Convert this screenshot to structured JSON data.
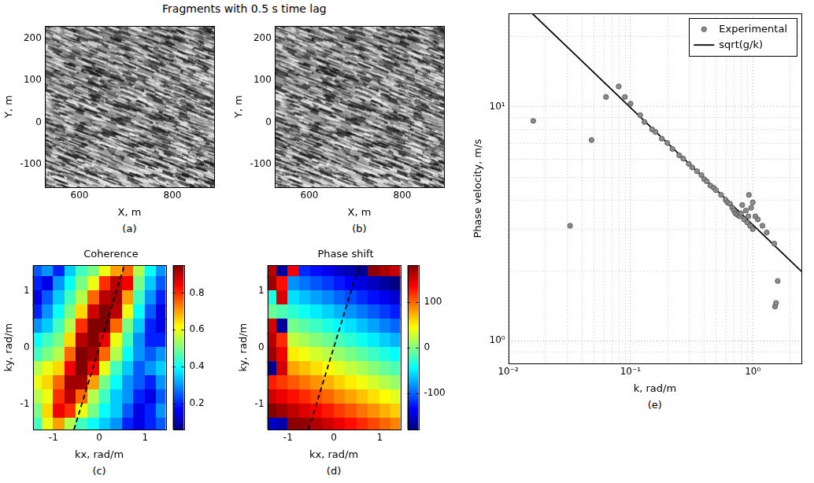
{
  "title": "Fragments with 0.5 s time lag",
  "chart_data": [
    {
      "type": "image",
      "caption": "(a)",
      "x_label": "X, m",
      "y_label": "Y, m",
      "xlim": [
        525,
        890
      ],
      "xticks": [
        600,
        800
      ],
      "ylim": [
        -155,
        230
      ],
      "yticks": [
        -100,
        0,
        100,
        200
      ],
      "grid": false
    },
    {
      "type": "image",
      "caption": "(b)",
      "x_label": "X, m",
      "y_label": "Y, m",
      "xlim": [
        525,
        890
      ],
      "xticks": [
        600,
        800
      ],
      "ylim": [
        -155,
        230
      ],
      "yticks": [
        -100,
        0,
        100,
        200
      ],
      "grid": false
    },
    {
      "type": "heatmap",
      "title": "Coherence",
      "caption": "(c)",
      "x_label": "kx, rad/m",
      "y_label": "ky, rad/m",
      "xlim": [
        -1.45,
        1.45
      ],
      "xticks": [
        -1,
        0,
        1
      ],
      "ylim": [
        -1.45,
        1.45
      ],
      "yticks": [
        -1,
        0,
        1
      ],
      "grid": false,
      "x": [
        -1.375,
        -1.125,
        -0.875,
        -0.625,
        -0.375,
        -0.125,
        0.125,
        0.375,
        0.625,
        0.875,
        1.125,
        1.375
      ],
      "y": [
        1.375,
        1.125,
        0.875,
        0.625,
        0.375,
        0.125,
        -0.125,
        -0.375,
        -0.625,
        -0.875,
        -1.125,
        -1.375
      ],
      "cells": [
        [
          0.25,
          0.3,
          0.2,
          0.35,
          0.45,
          0.5,
          0.6,
          0.7,
          0.75,
          0.55,
          0.4,
          0.3
        ],
        [
          0.2,
          0.15,
          0.3,
          0.4,
          0.5,
          0.6,
          0.8,
          0.9,
          0.85,
          0.5,
          0.35,
          0.25
        ],
        [
          0.15,
          0.25,
          0.35,
          0.45,
          0.55,
          0.75,
          0.9,
          0.92,
          0.7,
          0.45,
          0.3,
          0.2
        ],
        [
          0.2,
          0.3,
          0.4,
          0.5,
          0.65,
          0.88,
          0.95,
          0.9,
          0.6,
          0.4,
          0.25,
          0.15
        ],
        [
          0.3,
          0.35,
          0.45,
          0.55,
          0.8,
          0.95,
          0.95,
          0.75,
          0.5,
          0.35,
          0.2,
          0.15
        ],
        [
          0.4,
          0.45,
          0.5,
          0.65,
          0.9,
          0.95,
          0.85,
          0.6,
          0.45,
          0.3,
          0.2,
          0.2
        ],
        [
          0.45,
          0.5,
          0.55,
          0.75,
          0.95,
          0.92,
          0.75,
          0.55,
          0.4,
          0.3,
          0.25,
          0.3
        ],
        [
          0.55,
          0.6,
          0.65,
          0.85,
          0.95,
          0.85,
          0.6,
          0.45,
          0.35,
          0.25,
          0.3,
          0.35
        ],
        [
          0.6,
          0.65,
          0.75,
          0.92,
          0.92,
          0.7,
          0.5,
          0.4,
          0.3,
          0.25,
          0.2,
          0.3
        ],
        [
          0.55,
          0.6,
          0.8,
          0.9,
          0.75,
          0.55,
          0.45,
          0.35,
          0.3,
          0.2,
          0.15,
          0.25
        ],
        [
          0.5,
          0.65,
          0.85,
          0.8,
          0.6,
          0.5,
          0.4,
          0.35,
          0.25,
          0.15,
          0.2,
          0.3
        ],
        [
          0.45,
          0.6,
          0.7,
          0.55,
          0.45,
          0.4,
          0.35,
          0.3,
          0.2,
          0.15,
          0.2,
          0.25
        ]
      ],
      "colorbar_lim": [
        0.06,
        0.95
      ],
      "colorbar_ticks": [
        0.2,
        0.4,
        0.6,
        0.8
      ],
      "series": [
        {
          "type": "line",
          "line_style": "dashed",
          "color": "#000000",
          "x": [
            -0.55,
            0.55
          ],
          "values": [
            -1.45,
            1.45
          ]
        }
      ]
    },
    {
      "type": "heatmap",
      "title": "Phase shift",
      "caption": "(d)",
      "x_label": "kx, rad/m",
      "y_label": "ky, rad/m",
      "xlim": [
        -1.45,
        1.45
      ],
      "xticks": [
        -1,
        0,
        1
      ],
      "ylim": [
        -1.45,
        1.45
      ],
      "yticks": [
        -1,
        0,
        1
      ],
      "grid": false,
      "x": [
        -1.375,
        -1.125,
        -0.875,
        -0.625,
        -0.375,
        -0.125,
        0.125,
        0.375,
        0.625,
        0.875,
        1.125,
        1.375
      ],
      "y": [
        1.375,
        1.125,
        0.875,
        0.625,
        0.375,
        0.125,
        -0.125,
        -0.375,
        -0.625,
        -0.875,
        -1.125,
        -1.375
      ],
      "cells": [
        [
          160,
          -170,
          140,
          -121,
          -131,
          -141,
          -153,
          -163,
          -174,
          176,
          165,
          154
        ],
        [
          170,
          130,
          -84,
          -94,
          -105,
          -115,
          -127,
          -137,
          -147,
          -158,
          -169,
          -179
        ],
        [
          -35,
          150,
          -56,
          -67,
          -77,
          -87,
          -99,
          -109,
          -120,
          -130,
          -141,
          -152
        ],
        [
          -8,
          -18,
          -30,
          -40,
          -51,
          -61,
          -72,
          -83,
          -93,
          -104,
          -115,
          -125
        ],
        [
          150,
          -170,
          -3,
          -14,
          -24,
          -35,
          -46,
          -56,
          -67,
          -77,
          -89,
          -99
        ],
        [
          160,
          120,
          23,
          13,
          2,
          -8,
          -20,
          -30,
          -40,
          -51,
          -62,
          -72
        ],
        [
          170,
          140,
          51,
          40,
          30,
          20,
          8,
          -2,
          -13,
          -23,
          -35,
          -45
        ],
        [
          -175,
          150,
          77,
          67,
          56,
          46,
          35,
          24,
          14,
          3,
          -8,
          -18
        ],
        [
          125,
          115,
          104,
          93,
          83,
          72,
          61,
          51,
          40,
          30,
          18,
          8
        ],
        [
          152,
          141,
          130,
          120,
          109,
          99,
          87,
          77,
          67,
          56,
          45,
          35
        ],
        [
          179,
          169,
          158,
          147,
          137,
          127,
          115,
          105,
          94,
          84,
          72,
          62
        ],
        [
          -154,
          -165,
          176,
          174,
          163,
          153,
          141,
          131,
          121,
          110,
          99,
          89
        ]
      ],
      "colorbar_lim": [
        -180,
        180
      ],
      "colorbar_ticks": [
        -100,
        0,
        100
      ],
      "series": [
        {
          "type": "line",
          "line_style": "dashed",
          "color": "#000000",
          "x": [
            -0.55,
            0.55
          ],
          "values": [
            -1.45,
            1.45
          ]
        }
      ]
    },
    {
      "type": "scatter",
      "caption": "(e)",
      "x_label": "k, rad/m",
      "y_label": "Phase velocity, m/s",
      "log": true,
      "grid": true,
      "legend": "upper right",
      "xlim": [
        0.01,
        2.5
      ],
      "xticks": [
        {
          "value": 0.01,
          "label": "10⁻²"
        },
        {
          "value": 0.1,
          "label": "10⁻¹"
        },
        {
          "value": 1,
          "label": "10⁰"
        }
      ],
      "ylim": [
        0.8,
        25
      ],
      "yticks": [
        {
          "value": 1,
          "label": "10⁰"
        },
        {
          "value": 10,
          "label": "10¹"
        }
      ],
      "series": [
        {
          "name": "Experimental",
          "type": "scatter",
          "marker": "circle",
          "color": "#8c8c8c",
          "x": [
            0.016,
            0.032,
            0.048,
            0.063,
            0.08,
            0.09,
            0.1,
            0.12,
            0.13,
            0.15,
            0.16,
            0.18,
            0.2,
            0.22,
            0.25,
            0.27,
            0.3,
            0.32,
            0.35,
            0.38,
            0.4,
            0.42,
            0.45,
            0.48,
            0.5,
            0.55,
            0.6,
            0.62,
            0.65,
            0.68,
            0.7,
            0.72,
            0.75,
            0.78,
            0.8,
            0.82,
            0.85,
            0.88,
            0.9,
            0.92,
            0.93,
            0.95,
            0.97,
            1.0,
            1.0,
            1.05,
            1.1,
            1.2,
            1.3,
            1.5,
            1.52,
            1.55,
            1.6
          ],
          "values": [
            8.7,
            3.1,
            7.2,
            11,
            12.2,
            11,
            10.3,
            9.2,
            8.6,
            8.0,
            7.8,
            7.3,
            7.0,
            6.6,
            6.2,
            6.0,
            5.7,
            5.5,
            5.3,
            5.1,
            4.9,
            4.8,
            4.6,
            4.5,
            4.4,
            4.2,
            4.0,
            3.9,
            3.85,
            3.7,
            3.6,
            3.5,
            3.45,
            3.4,
            3.5,
            3.8,
            3.3,
            3.6,
            3.2,
            3.4,
            4.2,
            3.1,
            3.7,
            3.0,
            3.9,
            3.4,
            3.3,
            3.1,
            2.9,
            2.6,
            1.4,
            1.45,
            1.8
          ]
        },
        {
          "name": "sqrt(g/k)",
          "type": "line",
          "line_style": "solid",
          "color": "#000000",
          "x": [
            0.0157,
            2.5
          ],
          "values": [
            25,
            1.98
          ]
        }
      ]
    }
  ]
}
